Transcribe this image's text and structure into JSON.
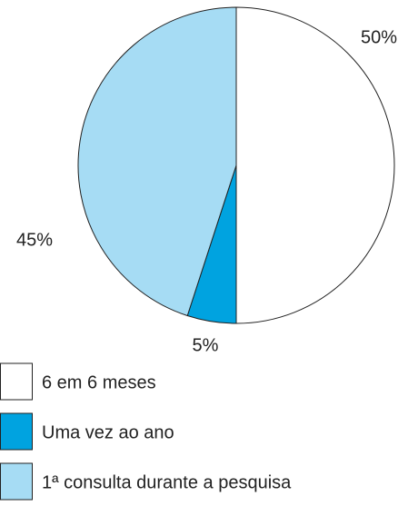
{
  "chart_data": {
    "type": "pie",
    "categories": [
      "6 em 6 meses",
      "Uma vez ao ano",
      "1ª consulta durante a pesquisa"
    ],
    "values": [
      50,
      5,
      45
    ],
    "value_labels": [
      "50%",
      "5%",
      "45%"
    ],
    "colors": [
      "#ffffff",
      "#00a3e0",
      "#a6dcf4"
    ]
  }
}
